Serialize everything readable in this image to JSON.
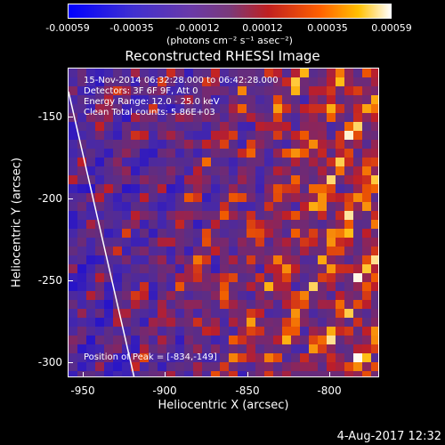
{
  "colorbar": {
    "labels": [
      "-0.00059",
      "-0.00035",
      "-0.00012",
      "0.00012",
      "0.00035",
      "0.00059"
    ],
    "unit": "(photons cm⁻² s⁻¹ asec⁻²)"
  },
  "title": "Reconstructed RHESSI Image",
  "info": {
    "line1": "15-Nov-2014 06:32:28.000 to 06:42:28.000",
    "line2": "Detectors: 3F 6F 9F, Att 0",
    "line3": "Energy Range: 12.0 - 25.0 keV",
    "line4": "Clean    Total counts: 5.86E+03"
  },
  "peak": "Position of Peak = [-834,-149]",
  "axes": {
    "xlabel": "Heliocentric X (arcsec)",
    "ylabel": "Heliocentric Y (arcsec)",
    "xticks": [
      "-950",
      "-900",
      "-850",
      "-800"
    ],
    "yticks": [
      "-150",
      "-200",
      "-250",
      "-300"
    ]
  },
  "timestamp": "4-Aug-2017 12:32",
  "colors": {
    "negative": "#0000ff",
    "neutral": "#7a3a7a",
    "positive": "#ff6000",
    "peak": "#ffffff"
  }
}
